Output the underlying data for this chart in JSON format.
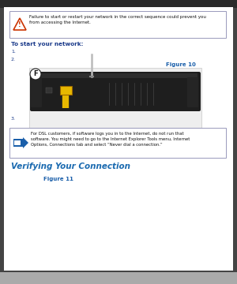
{
  "bg_color": "#ffffff",
  "outer_bg": "#444444",
  "top_bar_color": "#2a2a2a",
  "bottom_bar_color": "#aaaaaa",
  "warning_box_border": "#9999bb",
  "warning_text": "Failure to start or restart your network in the correct sequence could prevent you\nfrom accessing the Internet.",
  "warning_icon_color": "#cc3300",
  "heading_color": "#1a3a8a",
  "step1_text": "1.",
  "step2_text": "2.",
  "step3_text": "3.",
  "figure10_label": "Figure 10",
  "figure10_color": "#1a5faa",
  "note_box_border": "#9999bb",
  "note_icon_color": "#1a5faa",
  "note_text_line1": "For DSL customers, if software logs you in to the Internet, do not run that",
  "note_text_line2": "software. You might need to go to the Internet Explorer Tools menu, Internet",
  "note_text_line3": "Options, Connections tab and select “Never dial a connection.”",
  "heading2": "Verifying Your Connection",
  "heading2_color": "#1a6ab0",
  "figure11_label": "Figure 11",
  "figure11_color": "#1a5faa",
  "router_body_color": "#1e1e1e",
  "router_side_color": "#2a2a2a",
  "router_port_yellow": "#e8b800",
  "router_cable_color": "#e8b800",
  "router_antenna_color": "#bbbbbb",
  "router_port_dark": "#111111",
  "router_vent_color": "#333333",
  "section_heading_text": "To start your network:",
  "text_color_dark": "#111111"
}
